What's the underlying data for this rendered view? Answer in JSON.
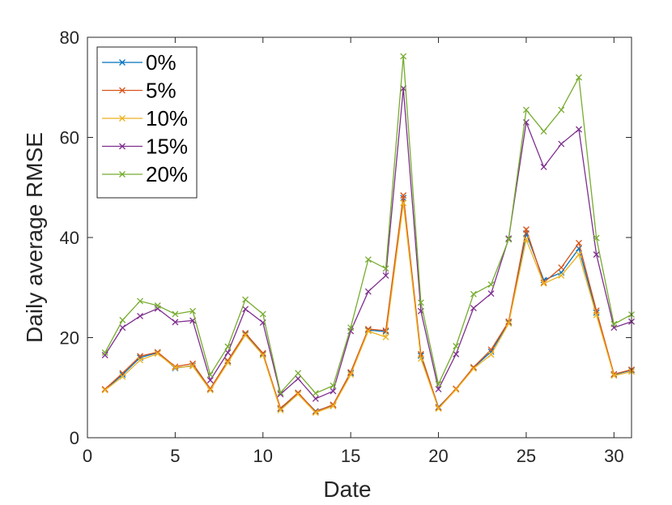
{
  "chart_data": {
    "type": "line",
    "xlabel": "Date",
    "ylabel": "Daily average RMSE",
    "xlim": [
      0,
      31
    ],
    "ylim": [
      0,
      80
    ],
    "xticks": [
      0,
      5,
      10,
      15,
      20,
      25,
      30
    ],
    "yticks": [
      0,
      20,
      40,
      60,
      80
    ],
    "grid": false,
    "legend_position": "top-left",
    "marker": "x",
    "x": [
      1,
      2,
      3,
      4,
      5,
      6,
      7,
      8,
      9,
      10,
      11,
      12,
      13,
      14,
      15,
      16,
      17,
      18,
      19,
      20,
      21,
      22,
      23,
      24,
      25,
      26,
      27,
      28,
      29,
      30,
      31
    ],
    "series": [
      {
        "name": "0%",
        "color": "#0072BD",
        "values": [
          9.6,
          12.6,
          16.0,
          17.0,
          13.9,
          14.4,
          9.7,
          15.3,
          20.7,
          16.7,
          5.8,
          8.9,
          5.3,
          6.5,
          12.9,
          21.5,
          21.2,
          47.9,
          16.4,
          6.1,
          9.7,
          14.0,
          17.2,
          23.0,
          40.8,
          31.5,
          33.0,
          37.8,
          25.0,
          12.6,
          13.5
        ]
      },
      {
        "name": "5%",
        "color": "#D95319",
        "values": [
          9.7,
          12.9,
          16.3,
          17.1,
          14.2,
          14.8,
          9.8,
          15.4,
          20.9,
          16.9,
          5.9,
          9.0,
          5.2,
          6.6,
          13.1,
          21.7,
          21.4,
          48.4,
          16.7,
          6.0,
          9.8,
          14.1,
          17.6,
          23.2,
          41.6,
          31.0,
          34.0,
          38.9,
          25.4,
          12.7,
          13.6
        ]
      },
      {
        "name": "10%",
        "color": "#EDB120",
        "values": [
          9.5,
          12.2,
          15.5,
          16.8,
          14.0,
          14.3,
          9.5,
          15.0,
          20.5,
          16.5,
          5.5,
          8.7,
          5.0,
          6.3,
          12.6,
          21.3,
          20.1,
          46.9,
          15.8,
          5.8,
          9.6,
          13.8,
          16.6,
          22.8,
          39.6,
          30.8,
          32.4,
          36.6,
          24.5,
          12.4,
          13.2
        ]
      },
      {
        "name": "15%",
        "color": "#7E2F8E",
        "values": [
          16.5,
          22.0,
          24.3,
          25.8,
          23.1,
          23.4,
          11.5,
          17.0,
          25.7,
          23.0,
          8.7,
          11.8,
          7.8,
          9.3,
          21.3,
          29.2,
          32.4,
          69.8,
          25.3,
          9.7,
          16.7,
          25.9,
          28.8,
          39.8,
          63.0,
          54.1,
          58.7,
          61.6,
          36.6,
          22.0,
          23.2
        ]
      },
      {
        "name": "20%",
        "color": "#77AC30",
        "values": [
          17.0,
          23.5,
          27.3,
          26.4,
          24.7,
          25.3,
          12.6,
          18.2,
          27.6,
          24.7,
          9.0,
          12.9,
          8.9,
          10.4,
          22.0,
          35.6,
          33.8,
          76.2,
          27.0,
          10.7,
          18.3,
          28.7,
          30.6,
          39.6,
          65.5,
          61.2,
          65.5,
          72.0,
          39.9,
          22.7,
          24.6
        ]
      }
    ]
  }
}
